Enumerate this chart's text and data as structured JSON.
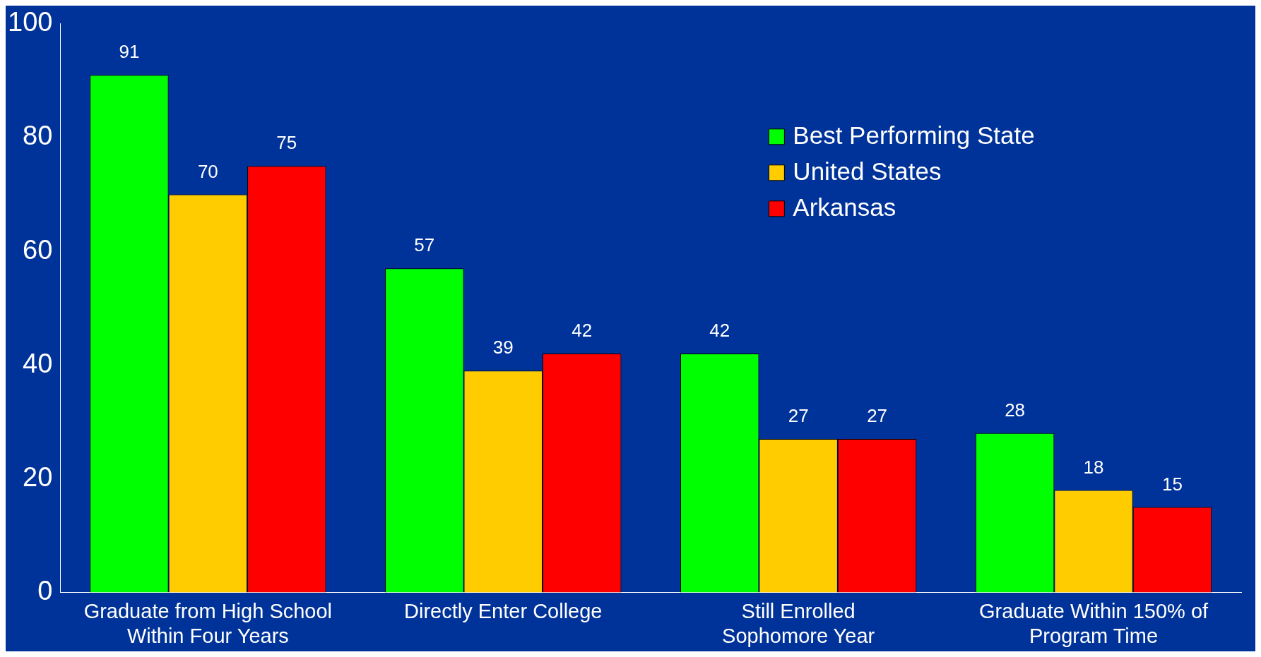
{
  "chart_data": {
    "type": "bar",
    "categories": [
      "Graduate from High School\nWithin Four Years",
      "Directly Enter College",
      "Still Enrolled\nSophomore Year",
      "Graduate Within 150% of\nProgram Time"
    ],
    "series": [
      {
        "name": "Best Performing State",
        "color": "#00ff00",
        "values": [
          91,
          57,
          42,
          28
        ]
      },
      {
        "name": "United States",
        "color": "#ffcc00",
        "values": [
          70,
          39,
          27,
          18
        ]
      },
      {
        "name": "Arkansas",
        "color": "#ff0000",
        "values": [
          75,
          42,
          27,
          15
        ]
      }
    ],
    "ylim": [
      0,
      100
    ],
    "yticks": [
      0,
      20,
      40,
      60,
      80,
      100
    ],
    "data_labels": true,
    "legend": "top right",
    "grid": false
  }
}
